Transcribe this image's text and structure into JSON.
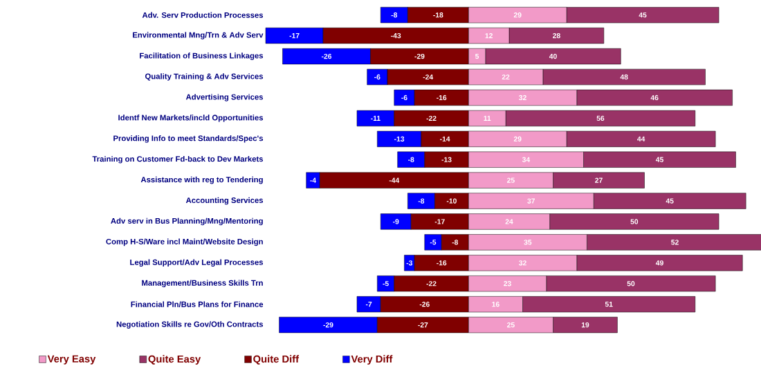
{
  "chart_data": {
    "type": "bar",
    "orientation": "horizontal",
    "stacked": true,
    "data_labels": true,
    "legend": "bottom",
    "categories": [
      "Adv. Serv Production Processes",
      "Environmental Mng/Trn & Adv Serv",
      "Facilitation of Business Linkages",
      "Quality Training & Adv Services",
      "Advertising Services",
      "Identf New Markets/incld Opportunities",
      "Providing Info to meet Standards/Spec's",
      "Training on Customer Fd-back to Dev Markets",
      "Assistance with reg to Tendering",
      "Accounting Services",
      "Adv serv in Bus Planning/Mng/Mentoring",
      "Comp H-S/Ware incl Maint/Website Design",
      "Legal Support/Adv Legal Processes",
      "Management/Business Skills Trn",
      "Financial Pln/Bus Plans for Finance",
      "Negotiation Skills re Gov/Oth Contracts"
    ],
    "series": [
      {
        "name": "Very Easy",
        "color": "#f29ac8",
        "values": [
          29,
          12,
          5,
          22,
          32,
          11,
          29,
          34,
          25,
          37,
          24,
          35,
          32,
          23,
          16,
          25
        ]
      },
      {
        "name": "Quite Easy",
        "color": "#993366",
        "values": [
          45,
          28,
          40,
          48,
          46,
          56,
          44,
          45,
          27,
          45,
          50,
          52,
          49,
          50,
          51,
          19
        ]
      },
      {
        "name": "Quite Diff",
        "color": "#800000",
        "values": [
          -18,
          -43,
          -29,
          -24,
          -16,
          -22,
          -14,
          -13,
          -44,
          -10,
          -17,
          -8,
          -16,
          -22,
          -26,
          -27
        ]
      },
      {
        "name": "Very Diff",
        "color": "#0000ff",
        "values": [
          -8,
          -17,
          -26,
          -6,
          -6,
          -11,
          -13,
          -8,
          -4,
          -8,
          -9,
          -5,
          -3,
          -5,
          -7,
          -29
        ]
      }
    ]
  }
}
